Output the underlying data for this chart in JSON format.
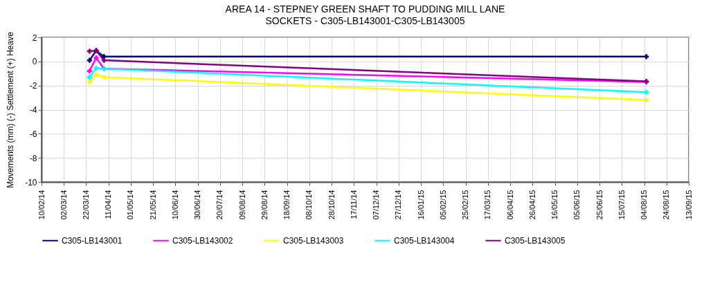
{
  "chart_data": {
    "type": "line",
    "title": "AREA 14 - STEPNEY GREEN SHAFT TO PUDDING MILL LANE",
    "subtitle": "SOCKETS -  C305-LB143001-C305-LB143005",
    "ylabel": "Movements (mm) (-) Settlement (+) Heave",
    "x": [
      "2014-03-25",
      "2014-03-31",
      "2014-04-07",
      "2015-08-06"
    ],
    "series": [
      {
        "name": "C305-LB143001",
        "color": "#000080",
        "values": [
          0.1,
          0.9,
          0.4,
          0.4
        ]
      },
      {
        "name": "C305-LB143002",
        "color": "#ff00ff",
        "values": [
          -0.8,
          0.3,
          -0.6,
          -1.7
        ]
      },
      {
        "name": "C305-LB143003",
        "color": "#ffff00",
        "values": [
          -1.7,
          -1.1,
          -1.3,
          -3.2
        ]
      },
      {
        "name": "C305-LB143004",
        "color": "#00ffff",
        "values": [
          -1.3,
          -0.55,
          -0.6,
          -2.55
        ]
      },
      {
        "name": "C305-LB143005",
        "color": "#800080",
        "values": [
          0.85,
          0.9,
          0.1,
          -1.65
        ]
      }
    ],
    "xlim": [
      "2014-02-10",
      "2015-09-13"
    ],
    "xticks": [
      {
        "value": "2014-02-10",
        "label": "10/02/14"
      },
      {
        "value": "2014-03-02",
        "label": "02/03/14"
      },
      {
        "value": "2014-03-22",
        "label": "22/03/14"
      },
      {
        "value": "2014-04-11",
        "label": "11/04/14"
      },
      {
        "value": "2014-05-01",
        "label": "01/05/14"
      },
      {
        "value": "2014-05-21",
        "label": "21/05/14"
      },
      {
        "value": "2014-06-10",
        "label": "10/06/14"
      },
      {
        "value": "2014-06-30",
        "label": "30/06/14"
      },
      {
        "value": "2014-07-20",
        "label": "20/07/14"
      },
      {
        "value": "2014-08-09",
        "label": "09/08/14"
      },
      {
        "value": "2014-08-29",
        "label": "29/08/14"
      },
      {
        "value": "2014-09-18",
        "label": "18/09/14"
      },
      {
        "value": "2014-10-08",
        "label": "08/10/14"
      },
      {
        "value": "2014-10-28",
        "label": "28/10/14"
      },
      {
        "value": "2014-11-17",
        "label": "17/11/14"
      },
      {
        "value": "2014-12-07",
        "label": "07/12/14"
      },
      {
        "value": "2014-12-27",
        "label": "27/12/14"
      },
      {
        "value": "2015-01-16",
        "label": "16/01/15"
      },
      {
        "value": "2015-02-05",
        "label": "05/02/15"
      },
      {
        "value": "2015-02-25",
        "label": "25/02/15"
      },
      {
        "value": "2015-03-17",
        "label": "17/03/15"
      },
      {
        "value": "2015-04-06",
        "label": "06/04/15"
      },
      {
        "value": "2015-04-26",
        "label": "26/04/15"
      },
      {
        "value": "2015-05-16",
        "label": "16/05/15"
      },
      {
        "value": "2015-06-05",
        "label": "05/06/15"
      },
      {
        "value": "2015-06-25",
        "label": "25/06/15"
      },
      {
        "value": "2015-07-15",
        "label": "15/07/15"
      },
      {
        "value": "2015-08-04",
        "label": "04/08/15"
      },
      {
        "value": "2015-08-24",
        "label": "24/08/15"
      },
      {
        "value": "2015-09-13",
        "label": "13/09/15"
      }
    ],
    "ylim": [
      -10,
      2
    ],
    "yticks": [
      -10,
      -8,
      -6,
      -4,
      -2,
      0,
      2
    ],
    "grid": true,
    "legend": "bottom",
    "marker": "cross",
    "line_style": "solid"
  }
}
